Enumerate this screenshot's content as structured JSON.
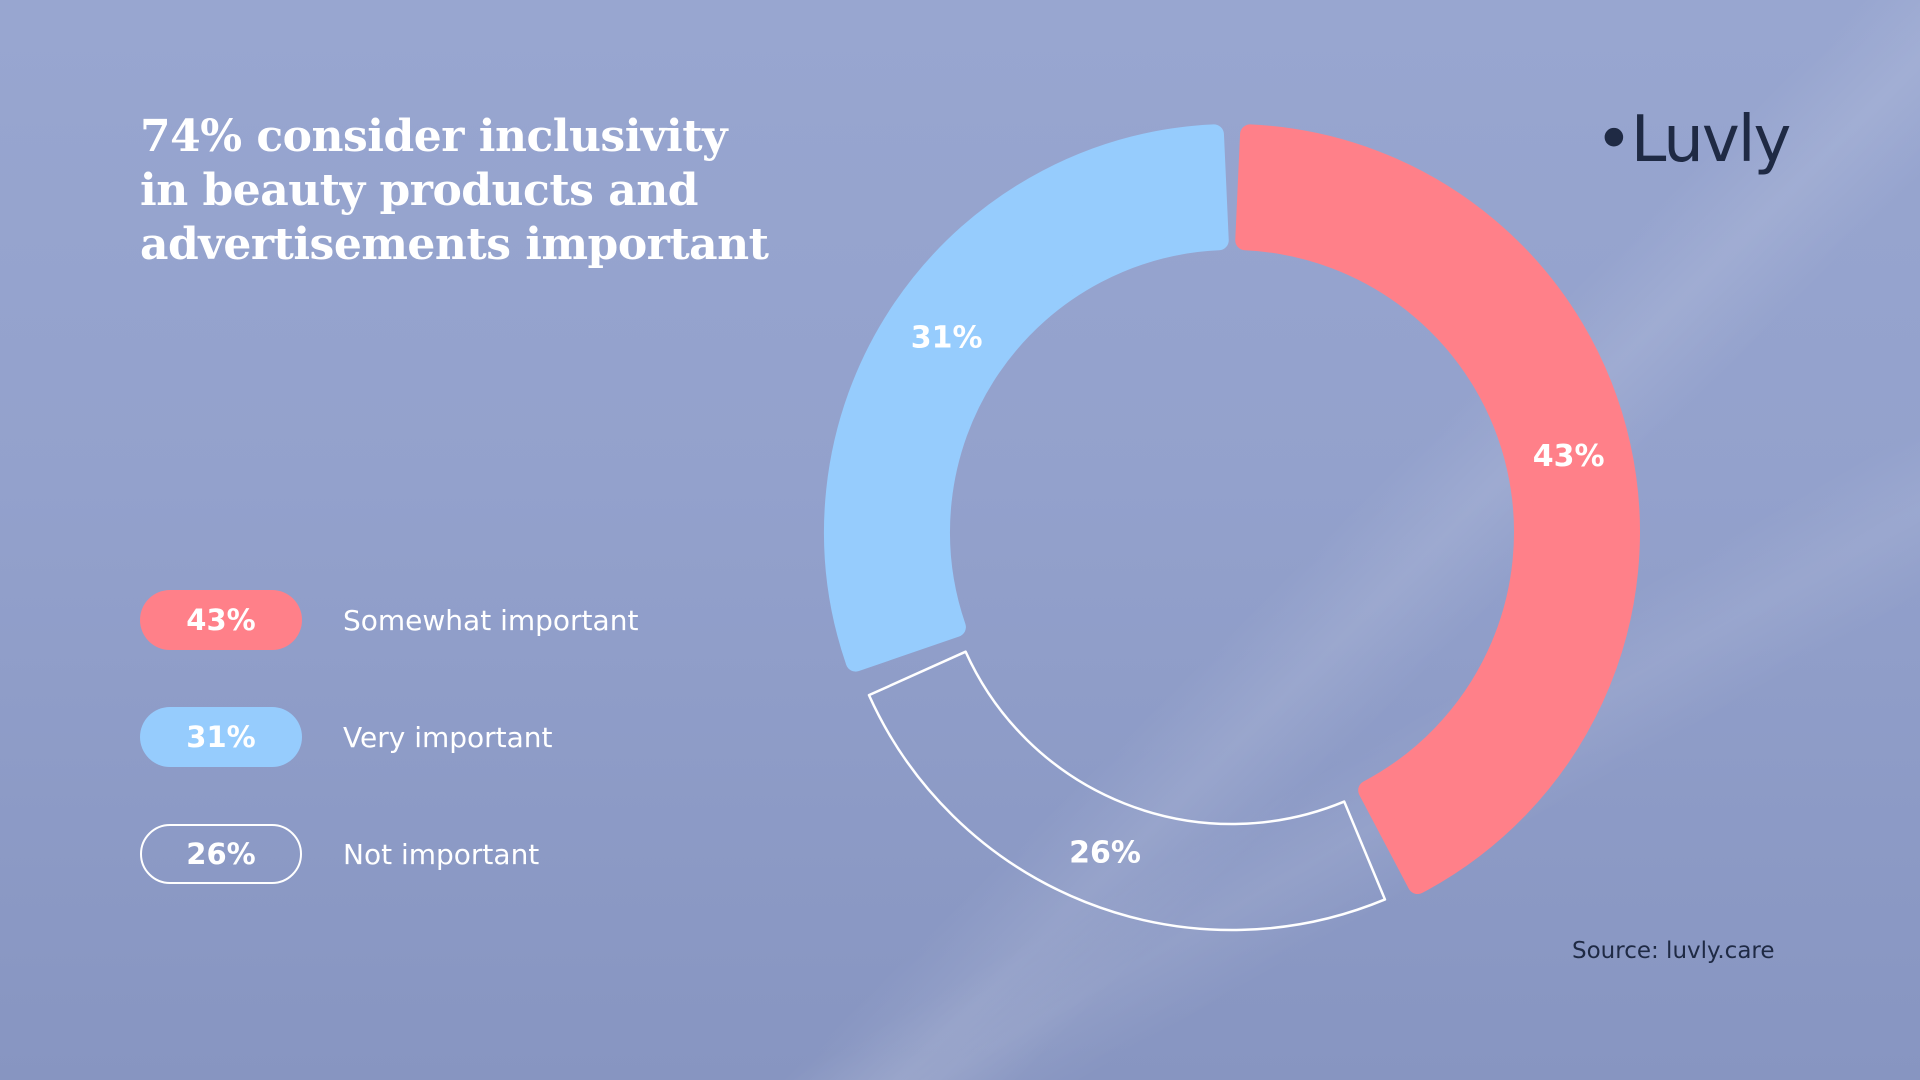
{
  "logo": {
    "text": "•Luvly"
  },
  "source": "Source: luvly.care",
  "chart_data": {
    "type": "pie",
    "variant": "donut",
    "title": "74% consider inclusivity in beauty products and advertisements important",
    "title_lines": [
      "74% consider inclusivity",
      "in beauty products and",
      "advertisements important"
    ],
    "unit": "%",
    "slices": [
      {
        "label": "Somewhat important",
        "value": 43,
        "display": "43%",
        "color": "#ff8089",
        "style": "filled"
      },
      {
        "label": "Not important",
        "value": 26,
        "display": "26%",
        "color": "#ffffff",
        "style": "outline"
      },
      {
        "label": "Very important",
        "value": 31,
        "display": "31%",
        "color": "#96ccfd",
        "style": "filled"
      }
    ],
    "legend_order": [
      0,
      2,
      1
    ],
    "legend_position": "left"
  }
}
